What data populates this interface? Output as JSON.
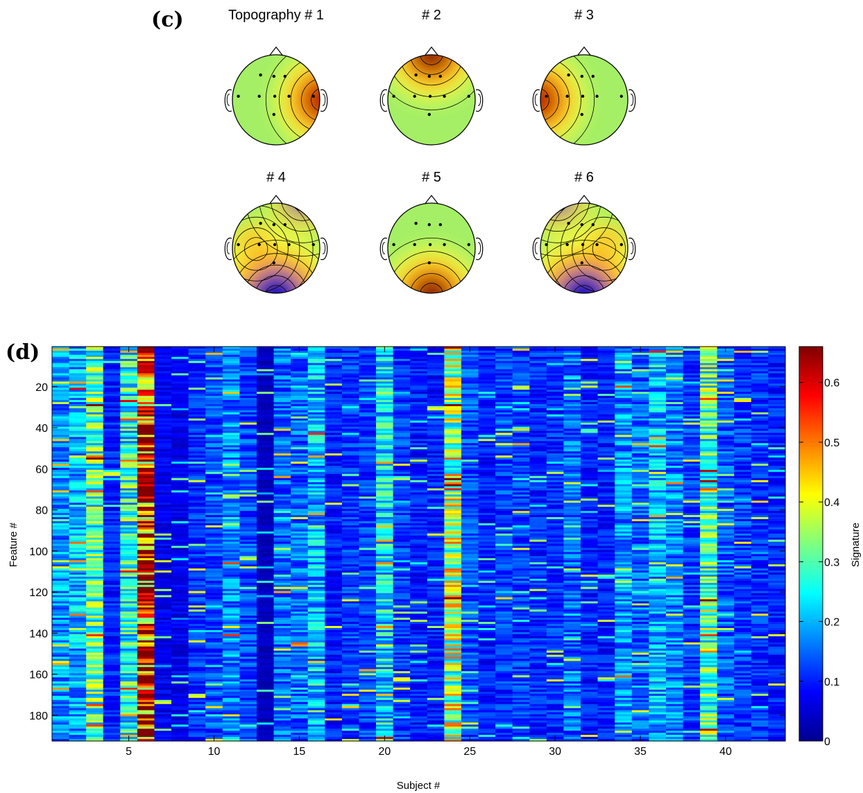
{
  "panel_c": {
    "label": "(c)",
    "topographies": [
      {
        "title": "Topography # 1",
        "pattern": "right-lateral"
      },
      {
        "title": "# 2",
        "pattern": "frontal"
      },
      {
        "title": "# 3",
        "pattern": "left-lateral"
      },
      {
        "title": "# 4",
        "pattern": "left-central-focal"
      },
      {
        "title": "# 5",
        "pattern": "occipital"
      },
      {
        "title": "# 6",
        "pattern": "right-central-focal"
      }
    ]
  },
  "chart_data": {
    "type": "heatmap",
    "panel_label": "(d)",
    "xlabel": "Subject #",
    "ylabel": "Feature #",
    "colorbar_label": "Signature",
    "n_subjects": 43,
    "n_features": 192,
    "xlim": [
      0.5,
      43.5
    ],
    "ylim": [
      0.5,
      192.5
    ],
    "x_ticks": [
      5,
      10,
      15,
      20,
      25,
      30,
      35,
      40
    ],
    "y_ticks": [
      20,
      40,
      60,
      80,
      100,
      120,
      140,
      160,
      180
    ],
    "colorbar_ticks": [
      0,
      0.1,
      0.2,
      0.3,
      0.4,
      0.5,
      0.6
    ],
    "color_range": [
      0,
      0.66
    ],
    "colormap": "jet",
    "subject_mean_signature": [
      0.18,
      0.2,
      0.3,
      0.1,
      0.26,
      0.56,
      0.07,
      0.07,
      0.11,
      0.13,
      0.17,
      0.13,
      0.04,
      0.15,
      0.15,
      0.2,
      0.1,
      0.12,
      0.12,
      0.23,
      0.12,
      0.1,
      0.1,
      0.36,
      0.13,
      0.1,
      0.12,
      0.12,
      0.11,
      0.11,
      0.15,
      0.1,
      0.1,
      0.18,
      0.15,
      0.2,
      0.17,
      0.12,
      0.3,
      0.14,
      0.12,
      0.11,
      0.1
    ]
  }
}
